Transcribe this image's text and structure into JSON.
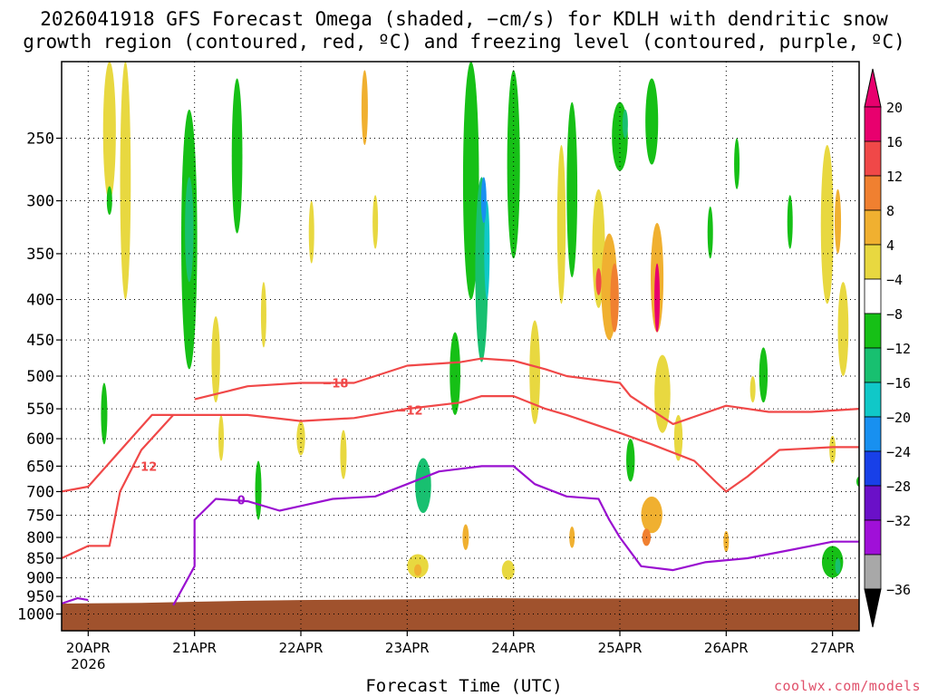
{
  "title_line1": "2026041918 GFS Forecast Omega (shaded, −cm/s) for KDLH with dendritic snow",
  "title_line2": "growth region (contoured, red, ºC) and freezing level (contoured, purple, ºC)",
  "xlabel": "Forecast Time (UTC)",
  "credit": "coolwx.com/models",
  "chart_data": {
    "type": "heatmap",
    "title": "2026041918 GFS Forecast Omega (shaded, −cm/s) for KDLH with dendritic snow growth region (contoured, red, ºC) and freezing level (contoured, purple, ºC)",
    "xlabel": "Forecast Time (UTC)",
    "ylabel": "",
    "x_range_days": [
      19.75,
      27.25
    ],
    "x_ticks": [
      {
        "day": 20,
        "label": "20APR",
        "sublabel": "2026"
      },
      {
        "day": 21,
        "label": "21APR"
      },
      {
        "day": 22,
        "label": "22APR"
      },
      {
        "day": 23,
        "label": "23APR"
      },
      {
        "day": 24,
        "label": "24APR"
      },
      {
        "day": 25,
        "label": "25APR"
      },
      {
        "day": 26,
        "label": "26APR"
      },
      {
        "day": 27,
        "label": "27APR"
      }
    ],
    "y_axis": "pressure (hPa), log scale, inverted",
    "y_range": [
      200,
      1050
    ],
    "y_ticks": [
      250,
      300,
      350,
      400,
      450,
      500,
      550,
      600,
      650,
      700,
      750,
      800,
      850,
      900,
      950,
      1000
    ],
    "grid": true,
    "colorbar": {
      "labels": [
        "20",
        "16",
        "12",
        "8",
        "4",
        "−4",
        "−8",
        "−12",
        "−16",
        "−20",
        "−24",
        "−28",
        "−32",
        "−36"
      ],
      "colors": [
        "#e8006e",
        "#f04848",
        "#f08030",
        "#f0b030",
        "#e8d840",
        "#ffffff",
        "#16c016",
        "#18c070",
        "#10c8c8",
        "#1890f0",
        "#1840e8",
        "#6a10c8",
        "#a010d8",
        "#a8a8a8"
      ],
      "bottom_arrow_color": "#000000"
    },
    "ground_color": "#a0522d",
    "ground_top_hpa": [
      [
        19.75,
        970
      ],
      [
        20.5,
        968
      ],
      [
        21.0,
        965
      ],
      [
        21.5,
        962
      ],
      [
        22.0,
        960
      ],
      [
        23.0,
        958
      ],
      [
        23.8,
        955
      ],
      [
        24.5,
        956
      ],
      [
        25.0,
        956
      ],
      [
        26.0,
        956
      ],
      [
        27.25,
        957
      ]
    ],
    "contours": [
      {
        "name": "−18",
        "color": "#f04848",
        "label": "−18",
        "points": [
          [
            21.0,
            535
          ],
          [
            21.5,
            515
          ],
          [
            22.0,
            510
          ],
          [
            22.5,
            510
          ],
          [
            23.0,
            485
          ],
          [
            23.5,
            480
          ],
          [
            23.7,
            475
          ],
          [
            24.0,
            478
          ],
          [
            24.3,
            490
          ],
          [
            24.5,
            500
          ],
          [
            25.0,
            510
          ],
          [
            25.1,
            530
          ],
          [
            25.5,
            575
          ],
          [
            26.0,
            545
          ],
          [
            26.4,
            555
          ],
          [
            26.8,
            555
          ],
          [
            27.25,
            550
          ]
        ],
        "label_at": [
          22.2,
          510
        ]
      },
      {
        "name": "−12",
        "color": "#f04848",
        "label": "−12",
        "points": [
          [
            19.75,
            700
          ],
          [
            20.0,
            690
          ],
          [
            20.4,
            600
          ],
          [
            20.6,
            560
          ],
          [
            21.0,
            560
          ],
          [
            21.5,
            560
          ],
          [
            22.0,
            570
          ],
          [
            22.5,
            565
          ],
          [
            23.0,
            550
          ],
          [
            23.5,
            540
          ],
          [
            23.7,
            530
          ],
          [
            24.0,
            530
          ],
          [
            24.3,
            550
          ],
          [
            24.5,
            560
          ],
          [
            25.0,
            590
          ],
          [
            25.3,
            610
          ],
          [
            25.7,
            640
          ],
          [
            25.9,
            680
          ],
          [
            26.0,
            700
          ],
          [
            26.2,
            670
          ],
          [
            26.5,
            620
          ],
          [
            27.0,
            615
          ],
          [
            27.25,
            615
          ]
        ],
        "label_at": [
          22.9,
          552
        ]
      },
      {
        "name": "−12 lower",
        "color": "#f04848",
        "label": "−12",
        "points": [
          [
            19.75,
            850
          ],
          [
            20.0,
            820
          ],
          [
            20.2,
            820
          ],
          [
            20.3,
            700
          ],
          [
            20.5,
            620
          ],
          [
            20.8,
            560
          ]
        ],
        "label_at": [
          20.4,
          650
        ]
      },
      {
        "name": "0",
        "color": "#9a10d0",
        "label": "0",
        "points": [
          [
            20.8,
            975
          ],
          [
            21.0,
            870
          ],
          [
            21.0,
            760
          ],
          [
            21.2,
            715
          ],
          [
            21.5,
            720
          ],
          [
            21.8,
            740
          ],
          [
            22.0,
            730
          ],
          [
            22.3,
            715
          ],
          [
            22.7,
            710
          ],
          [
            23.0,
            685
          ],
          [
            23.3,
            660
          ],
          [
            23.7,
            650
          ],
          [
            24.0,
            650
          ],
          [
            24.2,
            685
          ],
          [
            24.5,
            710
          ],
          [
            24.8,
            715
          ],
          [
            24.9,
            760
          ],
          [
            25.0,
            800
          ],
          [
            25.2,
            870
          ],
          [
            25.5,
            880
          ],
          [
            25.8,
            860
          ],
          [
            26.2,
            850
          ],
          [
            26.6,
            830
          ],
          [
            27.0,
            810
          ],
          [
            27.25,
            810
          ]
        ],
        "label_at": [
          21.4,
          717
        ]
      },
      {
        "name": "0 left",
        "color": "#9a10d0",
        "label": "",
        "points": [
          [
            19.75,
            970
          ],
          [
            19.9,
            955
          ],
          [
            20.0,
            960
          ]
        ],
        "label_at": null
      }
    ],
    "omega_blobs": [
      {
        "c": "#e8d840",
        "x": 20.2,
        "p": 240,
        "w": 0.12,
        "h": 120
      },
      {
        "c": "#e8d840",
        "x": 20.35,
        "p": 300,
        "w": 0.1,
        "h": 200
      },
      {
        "c": "#16c016",
        "x": 20.2,
        "p": 300,
        "w": 0.04,
        "h": 25
      },
      {
        "c": "#16c016",
        "x": 20.15,
        "p": 560,
        "w": 0.06,
        "h": 100
      },
      {
        "c": "#16c016",
        "x": 20.95,
        "p": 360,
        "w": 0.15,
        "h": 260
      },
      {
        "c": "#18c070",
        "x": 20.95,
        "p": 330,
        "w": 0.08,
        "h": 100
      },
      {
        "c": "#16c016",
        "x": 21.4,
        "p": 270,
        "w": 0.1,
        "h": 120
      },
      {
        "c": "#e8d840",
        "x": 21.2,
        "p": 480,
        "w": 0.08,
        "h": 120
      },
      {
        "c": "#e8d840",
        "x": 21.25,
        "p": 600,
        "w": 0.05,
        "h": 80
      },
      {
        "c": "#16c016",
        "x": 21.6,
        "p": 700,
        "w": 0.06,
        "h": 120
      },
      {
        "c": "#e8d840",
        "x": 21.65,
        "p": 420,
        "w": 0.05,
        "h": 80
      },
      {
        "c": "#e8d840",
        "x": 22.0,
        "p": 600,
        "w": 0.08,
        "h": 60
      },
      {
        "c": "#e8d840",
        "x": 22.1,
        "p": 330,
        "w": 0.04,
        "h": 60
      },
      {
        "c": "#e8d840",
        "x": 22.4,
        "p": 630,
        "w": 0.06,
        "h": 90
      },
      {
        "c": "#f0b030",
        "x": 22.6,
        "p": 230,
        "w": 0.06,
        "h": 50
      },
      {
        "c": "#e8d840",
        "x": 22.7,
        "p": 320,
        "w": 0.04,
        "h": 50
      },
      {
        "c": "#18c070",
        "x": 23.15,
        "p": 690,
        "w": 0.15,
        "h": 110
      },
      {
        "c": "#e8d840",
        "x": 23.1,
        "p": 870,
        "w": 0.2,
        "h": 60
      },
      {
        "c": "#f0b030",
        "x": 23.1,
        "p": 880,
        "w": 0.07,
        "h": 30
      },
      {
        "c": "#16c016",
        "x": 23.6,
        "p": 300,
        "w": 0.15,
        "h": 200
      },
      {
        "c": "#18c070",
        "x": 23.7,
        "p": 380,
        "w": 0.12,
        "h": 200
      },
      {
        "c": "#10c8c8",
        "x": 23.75,
        "p": 350,
        "w": 0.05,
        "h": 100
      },
      {
        "c": "#1890f0",
        "x": 23.72,
        "p": 300,
        "w": 0.02,
        "h": 40
      },
      {
        "c": "#16c016",
        "x": 24.0,
        "p": 280,
        "w": 0.12,
        "h": 150
      },
      {
        "c": "#16c016",
        "x": 23.45,
        "p": 500,
        "w": 0.1,
        "h": 120
      },
      {
        "c": "#e8d840",
        "x": 23.95,
        "p": 880,
        "w": 0.12,
        "h": 50
      },
      {
        "c": "#f0b030",
        "x": 23.55,
        "p": 800,
        "w": 0.06,
        "h": 60
      },
      {
        "c": "#e8d840",
        "x": 24.2,
        "p": 500,
        "w": 0.1,
        "h": 150
      },
      {
        "c": "#e8d840",
        "x": 24.45,
        "p": 330,
        "w": 0.08,
        "h": 150
      },
      {
        "c": "#16c016",
        "x": 24.55,
        "p": 300,
        "w": 0.1,
        "h": 150
      },
      {
        "c": "#f0b030",
        "x": 24.55,
        "p": 800,
        "w": 0.05,
        "h": 50
      },
      {
        "c": "#16c016",
        "x": 25.0,
        "p": 250,
        "w": 0.15,
        "h": 50
      },
      {
        "c": "#16c016",
        "x": 25.3,
        "p": 240,
        "w": 0.12,
        "h": 60
      },
      {
        "c": "#18c070",
        "x": 25.05,
        "p": 240,
        "w": 0.05,
        "h": 20
      },
      {
        "c": "#e8d840",
        "x": 24.8,
        "p": 350,
        "w": 0.12,
        "h": 120
      },
      {
        "c": "#f0b030",
        "x": 24.9,
        "p": 390,
        "w": 0.15,
        "h": 120
      },
      {
        "c": "#f08030",
        "x": 24.95,
        "p": 400,
        "w": 0.08,
        "h": 80
      },
      {
        "c": "#f04848",
        "x": 24.8,
        "p": 380,
        "w": 0.03,
        "h": 30
      },
      {
        "c": "#f0b030",
        "x": 25.35,
        "p": 380,
        "w": 0.12,
        "h": 120
      },
      {
        "c": "#e8006e",
        "x": 25.35,
        "p": 400,
        "w": 0.05,
        "h": 80
      },
      {
        "c": "#e8d840",
        "x": 25.4,
        "p": 530,
        "w": 0.15,
        "h": 120
      },
      {
        "c": "#f0b030",
        "x": 25.3,
        "p": 750,
        "w": 0.2,
        "h": 80
      },
      {
        "c": "#f08030",
        "x": 25.25,
        "p": 800,
        "w": 0.08,
        "h": 40
      },
      {
        "c": "#16c016",
        "x": 25.1,
        "p": 640,
        "w": 0.08,
        "h": 80
      },
      {
        "c": "#e8d840",
        "x": 25.55,
        "p": 600,
        "w": 0.08,
        "h": 80
      },
      {
        "c": "#16c016",
        "x": 26.1,
        "p": 270,
        "w": 0.05,
        "h": 40
      },
      {
        "c": "#16c016",
        "x": 25.85,
        "p": 330,
        "w": 0.05,
        "h": 50
      },
      {
        "c": "#16c016",
        "x": 26.35,
        "p": 500,
        "w": 0.08,
        "h": 80
      },
      {
        "c": "#e8d840",
        "x": 26.25,
        "p": 520,
        "w": 0.05,
        "h": 40
      },
      {
        "c": "#f0b030",
        "x": 26.0,
        "p": 810,
        "w": 0.05,
        "h": 50
      },
      {
        "c": "#e8d840",
        "x": 26.95,
        "p": 330,
        "w": 0.12,
        "h": 150
      },
      {
        "c": "#f0b030",
        "x": 27.05,
        "p": 320,
        "w": 0.06,
        "h": 60
      },
      {
        "c": "#e8d840",
        "x": 27.1,
        "p": 440,
        "w": 0.1,
        "h": 120
      },
      {
        "c": "#16c016",
        "x": 26.6,
        "p": 320,
        "w": 0.05,
        "h": 50
      },
      {
        "c": "#e8d840",
        "x": 27.0,
        "p": 620,
        "w": 0.06,
        "h": 50
      },
      {
        "c": "#16c016",
        "x": 27.0,
        "p": 860,
        "w": 0.2,
        "h": 80
      },
      {
        "c": "#18c070",
        "x": 27.05,
        "p": 870,
        "w": 0.05,
        "h": 40
      },
      {
        "c": "#16c016",
        "x": 27.25,
        "p": 680,
        "w": 0.04,
        "h": 20
      }
    ]
  }
}
